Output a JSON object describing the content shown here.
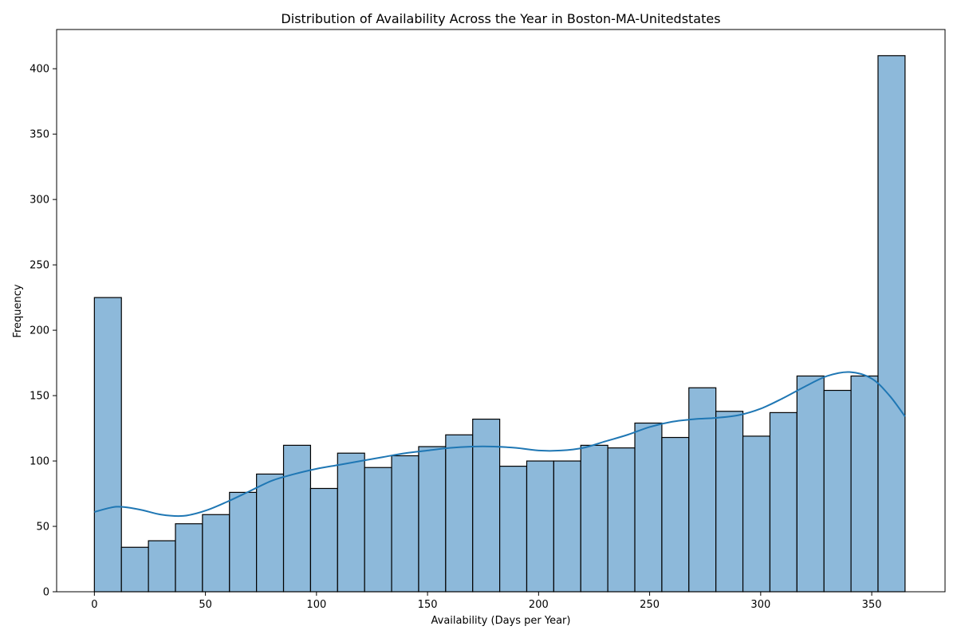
{
  "chart_data": {
    "type": "bar",
    "subtype": "histogram",
    "title": "Distribution of Availability Across the Year in Boston-MA-Unitedstates",
    "xlabel": "Availability (Days per Year)",
    "ylabel": "Frequency",
    "xlim": [
      -17,
      383
    ],
    "ylim": [
      0,
      430
    ],
    "x_ticks": [
      0,
      50,
      100,
      150,
      200,
      250,
      300,
      350
    ],
    "y_ticks": [
      0,
      50,
      100,
      150,
      200,
      250,
      300,
      350,
      400
    ],
    "grid": false,
    "bin_range": [
      0,
      365
    ],
    "bin_values": [
      225,
      34,
      39,
      52,
      59,
      76,
      90,
      112,
      79,
      106,
      95,
      104,
      111,
      120,
      132,
      96,
      100,
      100,
      112,
      110,
      129,
      118,
      156,
      138,
      119,
      137,
      165,
      154,
      165,
      410
    ],
    "bar_color": "#8db9da",
    "bar_edge_color": "#000000",
    "kde_color": "#1f77b4",
    "kde_curve": {
      "x": [
        0,
        10,
        20,
        30,
        40,
        50,
        60,
        70,
        80,
        90,
        100,
        110,
        120,
        130,
        140,
        150,
        160,
        170,
        180,
        190,
        200,
        210,
        220,
        230,
        240,
        250,
        260,
        270,
        280,
        290,
        300,
        310,
        320,
        330,
        340,
        350,
        358,
        365
      ],
      "y": [
        61,
        65,
        63,
        59,
        58,
        62,
        69,
        77,
        85,
        90,
        94,
        97,
        100,
        103,
        106,
        108,
        110,
        111,
        111,
        110,
        108,
        108,
        110,
        115,
        120,
        126,
        130,
        132,
        133,
        135,
        140,
        148,
        157,
        165,
        168,
        163,
        150,
        134
      ]
    }
  }
}
